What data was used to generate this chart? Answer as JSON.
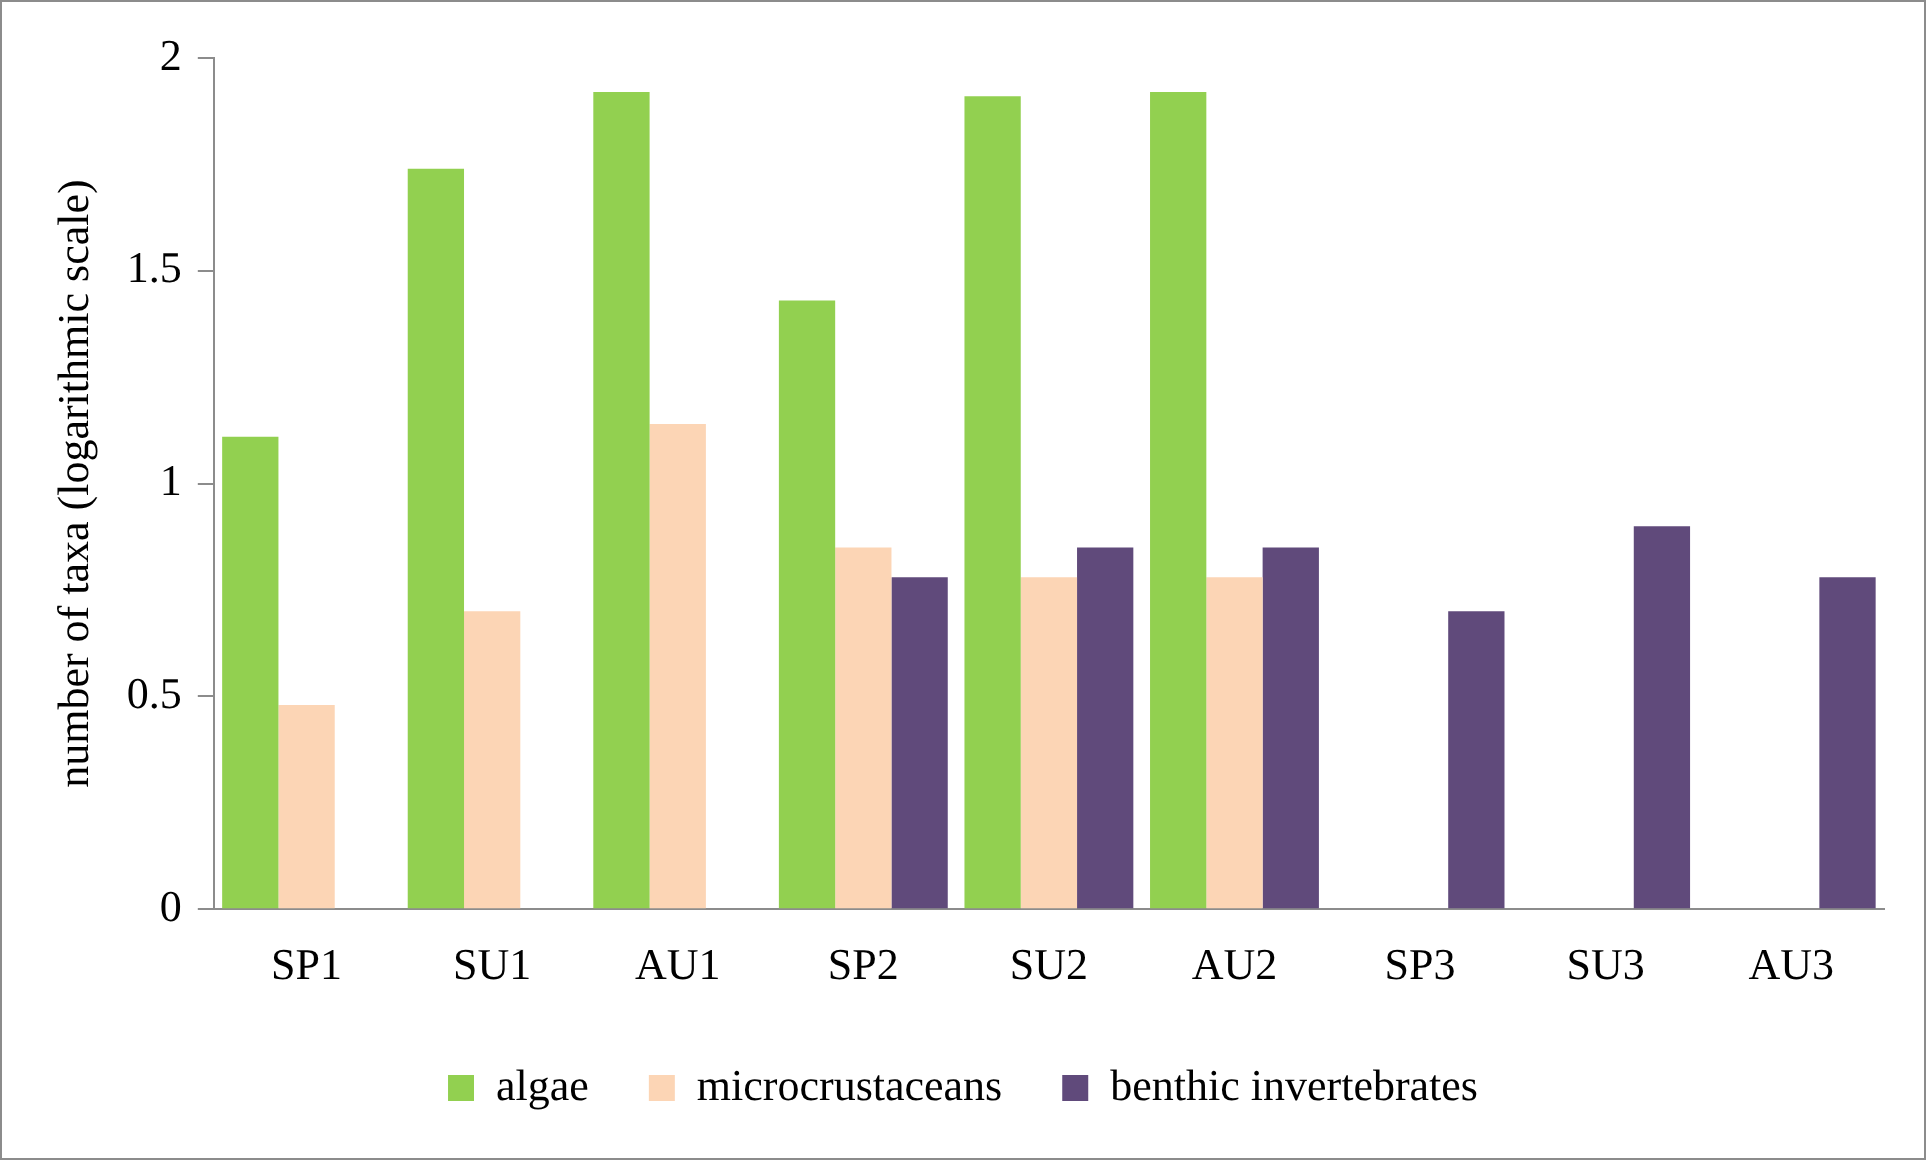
{
  "chart_data": {
    "type": "bar",
    "ylabel": "number of taxa (logarithmic scale)",
    "categories": [
      "SP1",
      "SU1",
      "AU1",
      "SP2",
      "SU2",
      "AU2",
      "SP3",
      "SU3",
      "AU3"
    ],
    "series": [
      {
        "name": "algae",
        "color": "#92d050",
        "values": [
          1.11,
          1.74,
          1.92,
          1.43,
          1.91,
          1.92,
          null,
          null,
          null
        ]
      },
      {
        "name": "microcrustaceans",
        "color": "#fcd5b5",
        "values": [
          0.48,
          0.7,
          1.14,
          0.85,
          0.78,
          0.78,
          null,
          null,
          null
        ]
      },
      {
        "name": "benthic invertebrates",
        "color": "#604a7b",
        "values": [
          null,
          null,
          null,
          0.78,
          0.85,
          0.85,
          0.7,
          0.9,
          0.78
        ]
      }
    ],
    "ylim": [
      0,
      2
    ],
    "yticks": [
      0,
      0.5,
      1,
      1.5,
      2
    ],
    "grid": false,
    "legend": "bottom"
  }
}
